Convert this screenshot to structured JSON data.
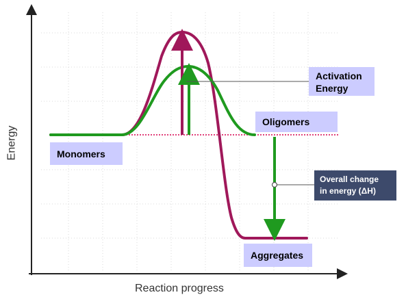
{
  "axes": {
    "x_label": "Reaction progress",
    "y_label": "Energy"
  },
  "labels": {
    "monomers": "Monomers",
    "oligomers": "Oligomers",
    "aggregates": "Aggregates",
    "activation_energy_line1": "Activation",
    "activation_energy_line2": "Energy",
    "overall_change_line1": "Overall change",
    "overall_change_line2": "in energy (ΔH)"
  },
  "colors": {
    "uncatalysed_curve": "#a0185a",
    "catalysed_curve": "#1f9a1f",
    "reference_line": "#e0407a",
    "label_box": "#ccccff",
    "dark_label_box": "#3d4a6b",
    "grid": "#d8d8d8"
  }
}
